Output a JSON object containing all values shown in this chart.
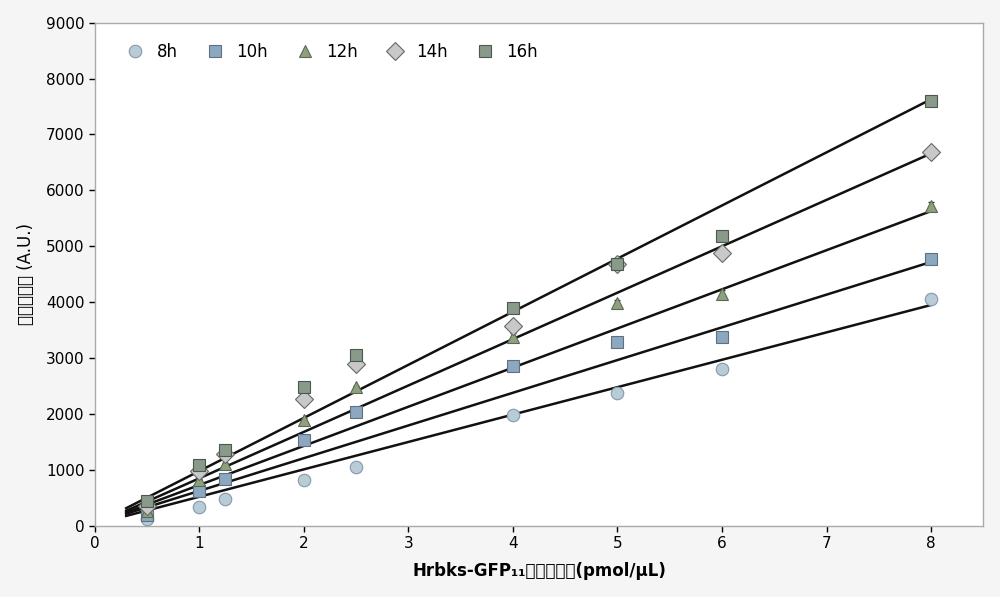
{
  "series": {
    "8h": {
      "x": [
        0.5,
        1.0,
        1.25,
        2.0,
        2.5,
        4.0,
        5.0,
        6.0,
        8.0
      ],
      "y": [
        130,
        330,
        480,
        820,
        1050,
        1980,
        2380,
        2800,
        4050
      ],
      "yerr": [
        15,
        20,
        20,
        25,
        25,
        60,
        60,
        70,
        70
      ],
      "marker": "o",
      "edgecolor": "#8898a8",
      "facecolor": "#b8ccd8",
      "label": "8h",
      "slope": 490,
      "intercept": 30
    },
    "10h": {
      "x": [
        0.5,
        1.0,
        1.25,
        2.0,
        2.5,
        4.0,
        5.0,
        6.0,
        8.0
      ],
      "y": [
        200,
        620,
        830,
        1530,
        2030,
        2850,
        3280,
        3380,
        4780
      ],
      "yerr": [
        15,
        20,
        20,
        25,
        25,
        60,
        60,
        70,
        70
      ],
      "marker": "s",
      "edgecolor": "#607080",
      "facecolor": "#8ba8c0",
      "label": "10h",
      "slope": 585,
      "intercept": 40
    },
    "12h": {
      "x": [
        0.5,
        1.0,
        1.25,
        2.0,
        2.5,
        4.0,
        5.0,
        6.0,
        8.0
      ],
      "y": [
        270,
        820,
        1100,
        1900,
        2480,
        3380,
        3980,
        4150,
        5720
      ],
      "yerr": [
        15,
        20,
        20,
        25,
        25,
        60,
        60,
        70,
        70
      ],
      "marker": "^",
      "edgecolor": "#5a6a50",
      "facecolor": "#8ea07e",
      "label": "12h",
      "slope": 700,
      "intercept": 30
    },
    "14h": {
      "x": [
        0.5,
        1.0,
        1.25,
        2.0,
        2.5,
        4.0,
        5.0,
        6.0,
        8.0
      ],
      "y": [
        360,
        980,
        1280,
        2270,
        2900,
        3580,
        4680,
        4880,
        6680
      ],
      "yerr": [
        15,
        20,
        20,
        25,
        25,
        80,
        80,
        90,
        90
      ],
      "marker": "D",
      "edgecolor": "#686868",
      "facecolor": "#c8c8c8",
      "label": "14h",
      "slope": 830,
      "intercept": 20
    },
    "16h": {
      "x": [
        0.5,
        1.0,
        1.25,
        2.0,
        2.5,
        4.0,
        5.0,
        6.0,
        8.0
      ],
      "y": [
        440,
        1080,
        1350,
        2480,
        3050,
        3900,
        4680,
        5180,
        7600
      ],
      "yerr": [
        15,
        20,
        20,
        25,
        25,
        80,
        80,
        90,
        90
      ],
      "marker": "s",
      "edgecolor": "#4a5a4a",
      "facecolor": "#8a9a8a",
      "label": "16h",
      "slope": 950,
      "intercept": 30
    }
  },
  "series_order": [
    "8h",
    "10h",
    "12h",
    "14h",
    "16h"
  ],
  "xlabel": "Hrbks-GFP₁₁的蜗白浓度(pmol/μL)",
  "ylabel": "荧光强度値 (A.U.)",
  "xlim": [
    0,
    8.5
  ],
  "ylim": [
    0,
    9000
  ],
  "yticks": [
    0,
    1000,
    2000,
    3000,
    4000,
    5000,
    6000,
    7000,
    8000,
    9000
  ],
  "xticks": [
    0,
    1,
    2,
    3,
    4,
    5,
    6,
    7,
    8
  ],
  "background_color": "#f5f5f5",
  "plot_bg_color": "#ffffff",
  "line_color": "#111111",
  "marker_size": 9,
  "line_width": 1.8,
  "fit_x_start": 0.3,
  "fit_x_end": 8.0,
  "border_color": "#aaaaaa"
}
